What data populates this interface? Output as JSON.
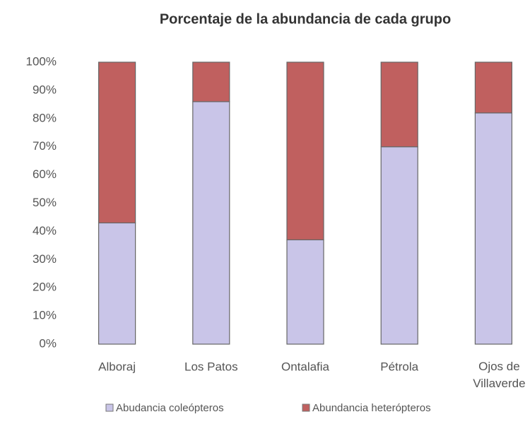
{
  "chart_data": {
    "type": "bar",
    "stacked": true,
    "title": "Porcentaje de la abundancia de cada grupo",
    "categories": [
      "Alboraj",
      "Los Patos",
      "Ontalafia",
      "Pétrola",
      "Ojos de Villaverde"
    ],
    "series": [
      {
        "name": "Abudancia coleópteros",
        "color": "#c9c5e8",
        "values": [
          43,
          86,
          37,
          70,
          82
        ]
      },
      {
        "name": "Abundancia heterópteros",
        "color": "#c0605f",
        "values": [
          57,
          14,
          63,
          30,
          18
        ]
      }
    ],
    "ylim": [
      0,
      100
    ],
    "yticks": [
      {
        "value": 0,
        "label": "0%"
      },
      {
        "value": 10,
        "label": "10%"
      },
      {
        "value": 20,
        "label": "20%"
      },
      {
        "value": 30,
        "label": "30%"
      },
      {
        "value": 40,
        "label": "40%"
      },
      {
        "value": 50,
        "label": "50%"
      },
      {
        "value": 60,
        "label": "60%"
      },
      {
        "value": 70,
        "label": "70%"
      },
      {
        "value": 80,
        "label": "80%"
      },
      {
        "value": 90,
        "label": "90%"
      },
      {
        "value": 100,
        "label": "100%"
      }
    ],
    "grid": false,
    "legend": "bottom"
  }
}
